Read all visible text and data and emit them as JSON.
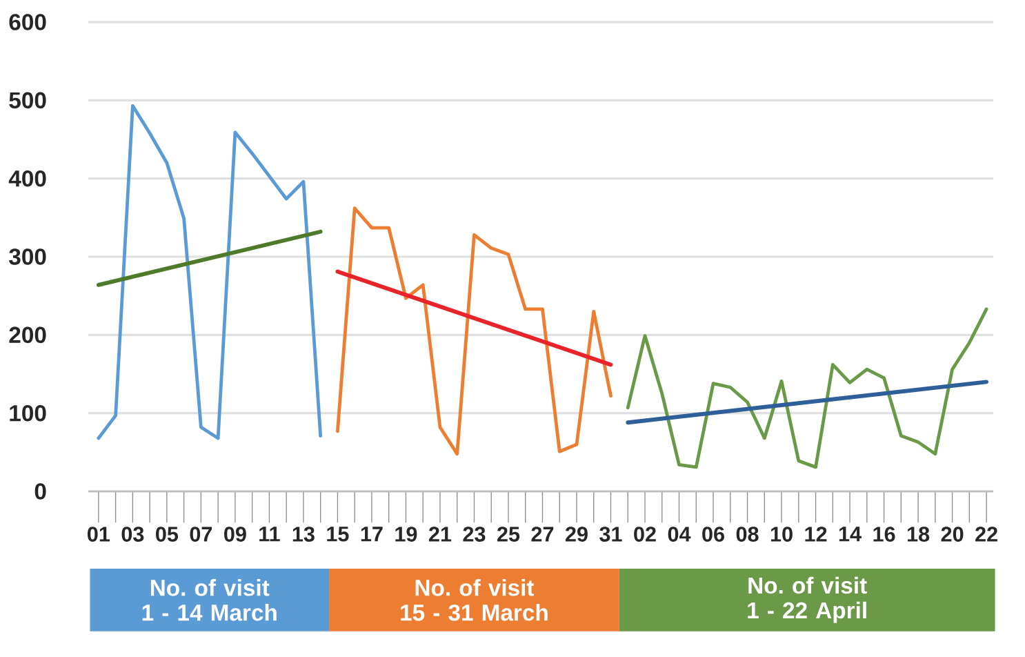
{
  "chart_data": {
    "type": "line",
    "categories": [
      "01",
      null,
      "03",
      null,
      "05",
      null,
      "07",
      null,
      "09",
      null,
      "11",
      null,
      "13",
      null,
      "15",
      null,
      "17",
      null,
      "19",
      null,
      "21",
      null,
      "23",
      null,
      "25",
      null,
      "27",
      null,
      "29",
      null,
      "31",
      null,
      "02",
      null,
      "04",
      null,
      "06",
      null,
      "08",
      null,
      "10",
      null,
      "12",
      null,
      "14",
      null,
      "16",
      null,
      "18",
      null,
      "20",
      null,
      "22"
    ],
    "series": [
      {
        "name": "No. of visit 1 - 14 March",
        "color": "#5b9bd5",
        "values": [
          68,
          97,
          493,
          458,
          420,
          349,
          82,
          68,
          459,
          432,
          403,
          374,
          396,
          71,
          null,
          null,
          null,
          null,
          null,
          null,
          null,
          null,
          null,
          null,
          null,
          null,
          null,
          null,
          null,
          null,
          null,
          null,
          null,
          null,
          null,
          null,
          null,
          null,
          null,
          null,
          null,
          null,
          null,
          null,
          null,
          null,
          null,
          null,
          null,
          null,
          null,
          null,
          null
        ]
      },
      {
        "name": "No. of visit 15 - 31 March",
        "color": "#ed7d31",
        "values": [
          null,
          null,
          null,
          null,
          null,
          null,
          null,
          null,
          null,
          null,
          null,
          null,
          null,
          null,
          77,
          362,
          337,
          337,
          247,
          264,
          82,
          48,
          328,
          311,
          303,
          233,
          233,
          51,
          60,
          230,
          122,
          null,
          null,
          null,
          null,
          null,
          null,
          null,
          null,
          null,
          null,
          null,
          null,
          null,
          null,
          null,
          null,
          null,
          null,
          null,
          null,
          null,
          null
        ]
      },
      {
        "name": "No. of visit 1 - 22 April",
        "color": "#6a9a48",
        "values": [
          null,
          null,
          null,
          null,
          null,
          null,
          null,
          null,
          null,
          null,
          null,
          null,
          null,
          null,
          null,
          null,
          null,
          null,
          null,
          null,
          null,
          null,
          null,
          null,
          null,
          null,
          null,
          null,
          null,
          null,
          null,
          107,
          199,
          125,
          34,
          31,
          138,
          133,
          114,
          68,
          141,
          39,
          31,
          162,
          139,
          156,
          145,
          71,
          63,
          48,
          156,
          190,
          233
        ]
      },
      {
        "type": "line",
        "color": "#4e7a2a",
        "values": [
          264,
          null,
          null,
          null,
          null,
          null,
          null,
          null,
          null,
          null,
          null,
          null,
          null,
          332,
          null,
          null,
          null,
          null,
          null,
          null,
          null,
          null,
          null,
          null,
          null,
          null,
          null,
          null,
          null,
          null,
          null,
          null,
          null,
          null,
          null,
          null,
          null,
          null,
          null,
          null,
          null,
          null,
          null,
          null,
          null,
          null,
          null,
          null,
          null,
          null,
          null,
          null,
          null
        ]
      },
      {
        "type": "line",
        "color": "#e8232a",
        "values": [
          null,
          null,
          null,
          null,
          null,
          null,
          null,
          null,
          null,
          null,
          null,
          null,
          null,
          null,
          281,
          null,
          null,
          null,
          null,
          null,
          null,
          null,
          null,
          null,
          null,
          null,
          null,
          null,
          null,
          null,
          162,
          null,
          null,
          null,
          null,
          null,
          null,
          null,
          null,
          null,
          null,
          null,
          null,
          null,
          null,
          null,
          null,
          null,
          null,
          null,
          null,
          null,
          null
        ]
      },
      {
        "type": "line",
        "color": "#2f5f98",
        "values": [
          null,
          null,
          null,
          null,
          null,
          null,
          null,
          null,
          null,
          null,
          null,
          null,
          null,
          null,
          null,
          null,
          null,
          null,
          null,
          null,
          null,
          null,
          null,
          null,
          null,
          null,
          null,
          null,
          null,
          null,
          null,
          88,
          null,
          null,
          null,
          null,
          null,
          null,
          null,
          null,
          null,
          null,
          null,
          null,
          null,
          null,
          null,
          null,
          null,
          null,
          null,
          null,
          140
        ]
      }
    ],
    "ylim": [
      0,
      600
    ],
    "yticks": [
      0,
      100,
      200,
      300,
      400,
      500,
      600
    ],
    "grid": "y",
    "legend": "bottom"
  }
}
